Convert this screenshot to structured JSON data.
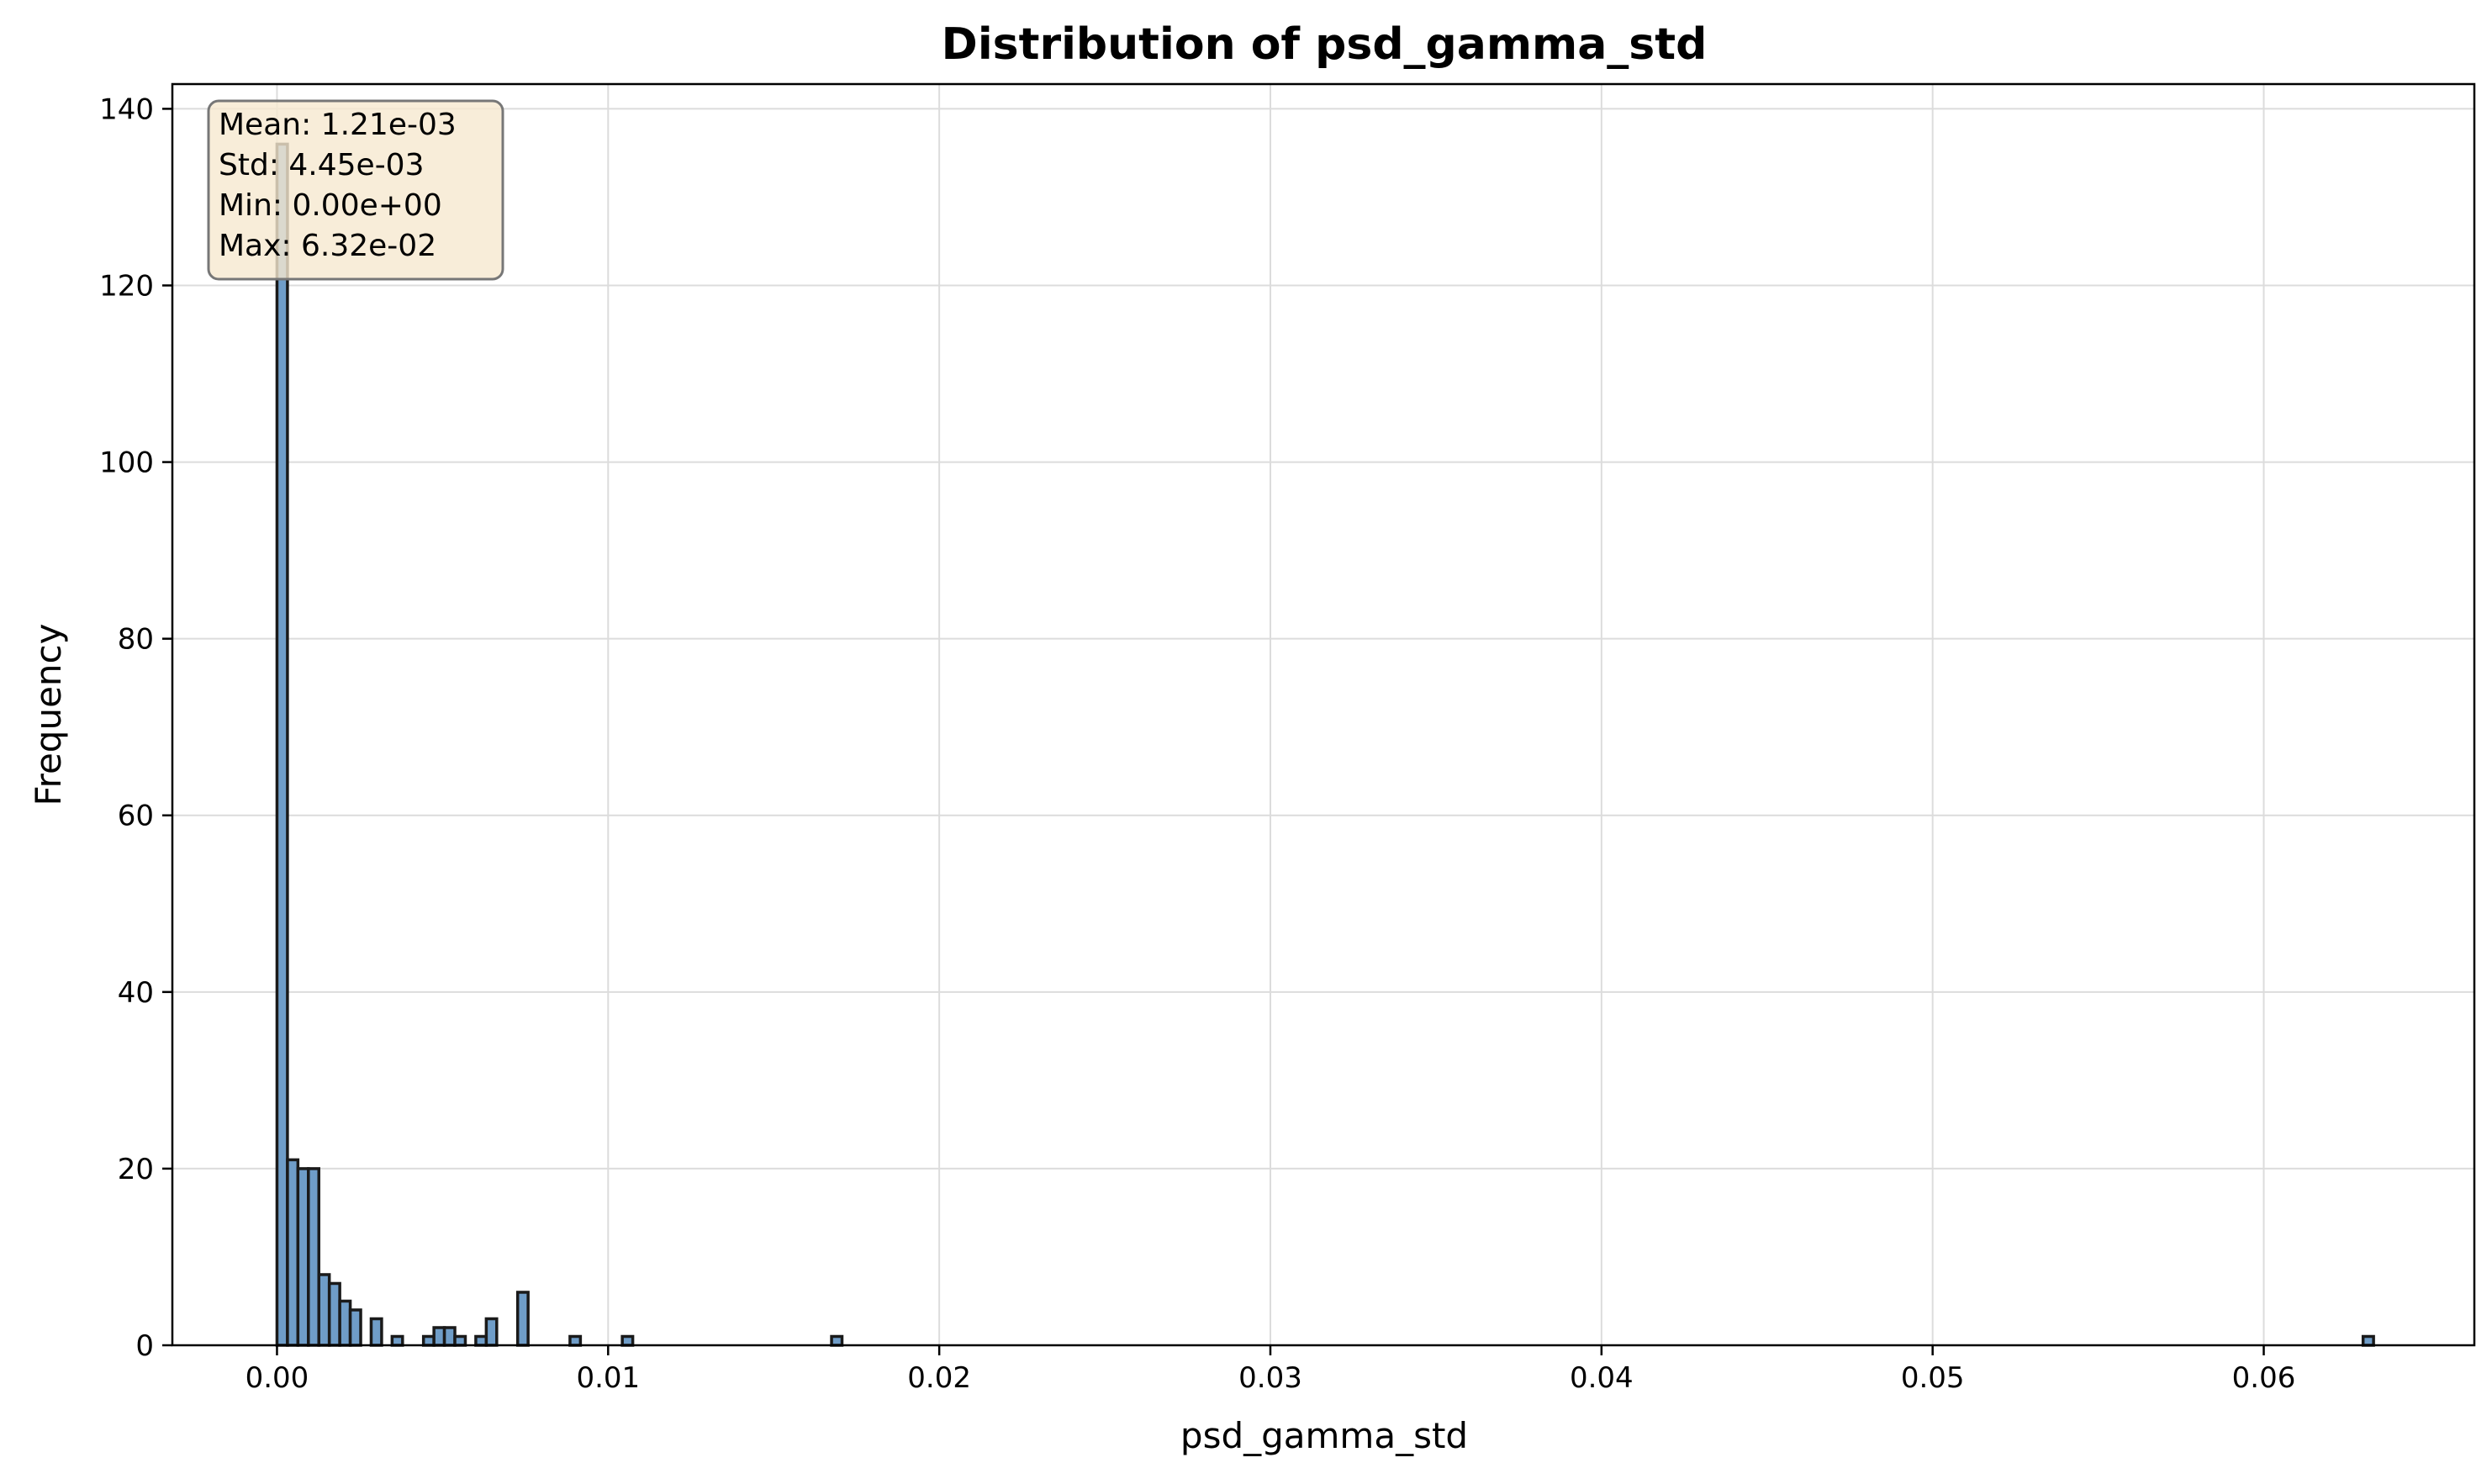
{
  "chart_data": {
    "type": "bar",
    "title": "Distribution of psd_gamma_std",
    "xlabel": "psd_gamma_std",
    "ylabel": "Frequency",
    "xlim": [
      -0.00316,
      0.06636
    ],
    "ylim": [
      0,
      142.8
    ],
    "xticks": [
      0.0,
      0.01,
      0.02,
      0.03,
      0.04,
      0.05,
      0.06
    ],
    "xtick_labels": [
      "0.00",
      "0.01",
      "0.02",
      "0.03",
      "0.04",
      "0.05",
      "0.06"
    ],
    "yticks": [
      0,
      20,
      40,
      60,
      80,
      100,
      120,
      140
    ],
    "ytick_labels": [
      "0",
      "20",
      "40",
      "60",
      "80",
      "100",
      "120",
      "140"
    ],
    "grid": true,
    "bin_width": 0.000316,
    "bins": [
      {
        "x": 0.0,
        "count": 136
      },
      {
        "x": 0.000316,
        "count": 21
      },
      {
        "x": 0.000632,
        "count": 20
      },
      {
        "x": 0.000948,
        "count": 20
      },
      {
        "x": 0.001264,
        "count": 8
      },
      {
        "x": 0.00158,
        "count": 7
      },
      {
        "x": 0.001896,
        "count": 5
      },
      {
        "x": 0.002212,
        "count": 4
      },
      {
        "x": 0.002844,
        "count": 3
      },
      {
        "x": 0.003476,
        "count": 1
      },
      {
        "x": 0.004424,
        "count": 1
      },
      {
        "x": 0.00474,
        "count": 2
      },
      {
        "x": 0.005056,
        "count": 2
      },
      {
        "x": 0.005372,
        "count": 1
      },
      {
        "x": 0.006004,
        "count": 1
      },
      {
        "x": 0.00632,
        "count": 3
      },
      {
        "x": 0.007268,
        "count": 6
      },
      {
        "x": 0.008848,
        "count": 1
      },
      {
        "x": 0.010428,
        "count": 1
      },
      {
        "x": 0.016748,
        "count": 1
      },
      {
        "x": 0.063,
        "count": 1
      }
    ],
    "stats_box": {
      "mean": "Mean: 1.21e-03",
      "std": "Std: 4.45e-03",
      "min": "Min: 0.00e+00",
      "max": "Max: 6.32e-02"
    },
    "colors": {
      "bar_fill": "#6f9dc8",
      "bar_edge": "#1a1a1a",
      "grid": "#dcdcdc",
      "stats_fill": "#f6e8cf",
      "stats_edge": "#777777"
    }
  }
}
